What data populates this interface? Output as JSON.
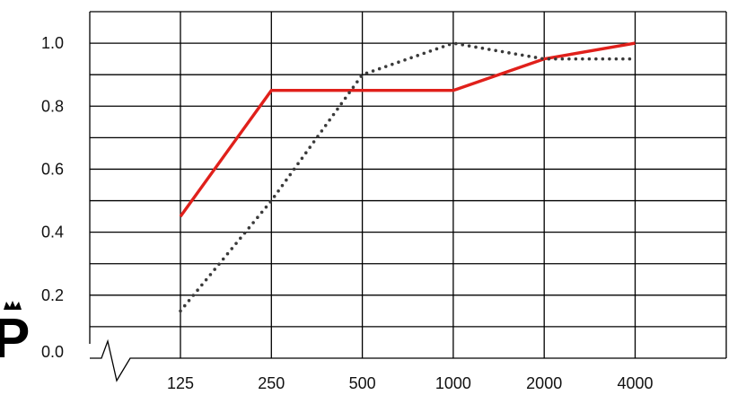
{
  "chart_data": {
    "type": "line",
    "title": "",
    "xlabel": "",
    "ylabel": "",
    "x_categories": [
      "125",
      "250",
      "500",
      "1000",
      "2000",
      "4000"
    ],
    "y_ticks": [
      "0.0",
      "0.2",
      "0.4",
      "0.6",
      "0.8",
      "1.0"
    ],
    "ylim": [
      0,
      1.1
    ],
    "grid": true,
    "axis_break": true,
    "series": [
      {
        "values": [
          0.45,
          0.85,
          0.85,
          0.85,
          0.95,
          1.0
        ],
        "color": "#e0201b",
        "style": "solid"
      },
      {
        "values": [
          0.15,
          0.5,
          0.9,
          1.0,
          0.95,
          0.95
        ],
        "color": "#3a3a3a",
        "style": "dotted"
      }
    ]
  },
  "logo": {
    "letter": "P",
    "icon": "crown-icon"
  }
}
